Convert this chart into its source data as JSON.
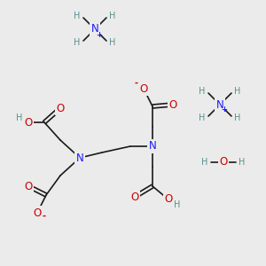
{
  "bg_color": "#ebebeb",
  "atom_colors": {
    "N": "#1a1aff",
    "O": "#cc0000",
    "H": "#5a9090",
    "plus": "#1a1aff",
    "minus": "#cc0000"
  },
  "bond_color": "#1a1a1a",
  "bond_width": 1.2,
  "font_size_atom": 8.5,
  "font_size_H": 7.0,
  "font_size_charge": 7.5
}
